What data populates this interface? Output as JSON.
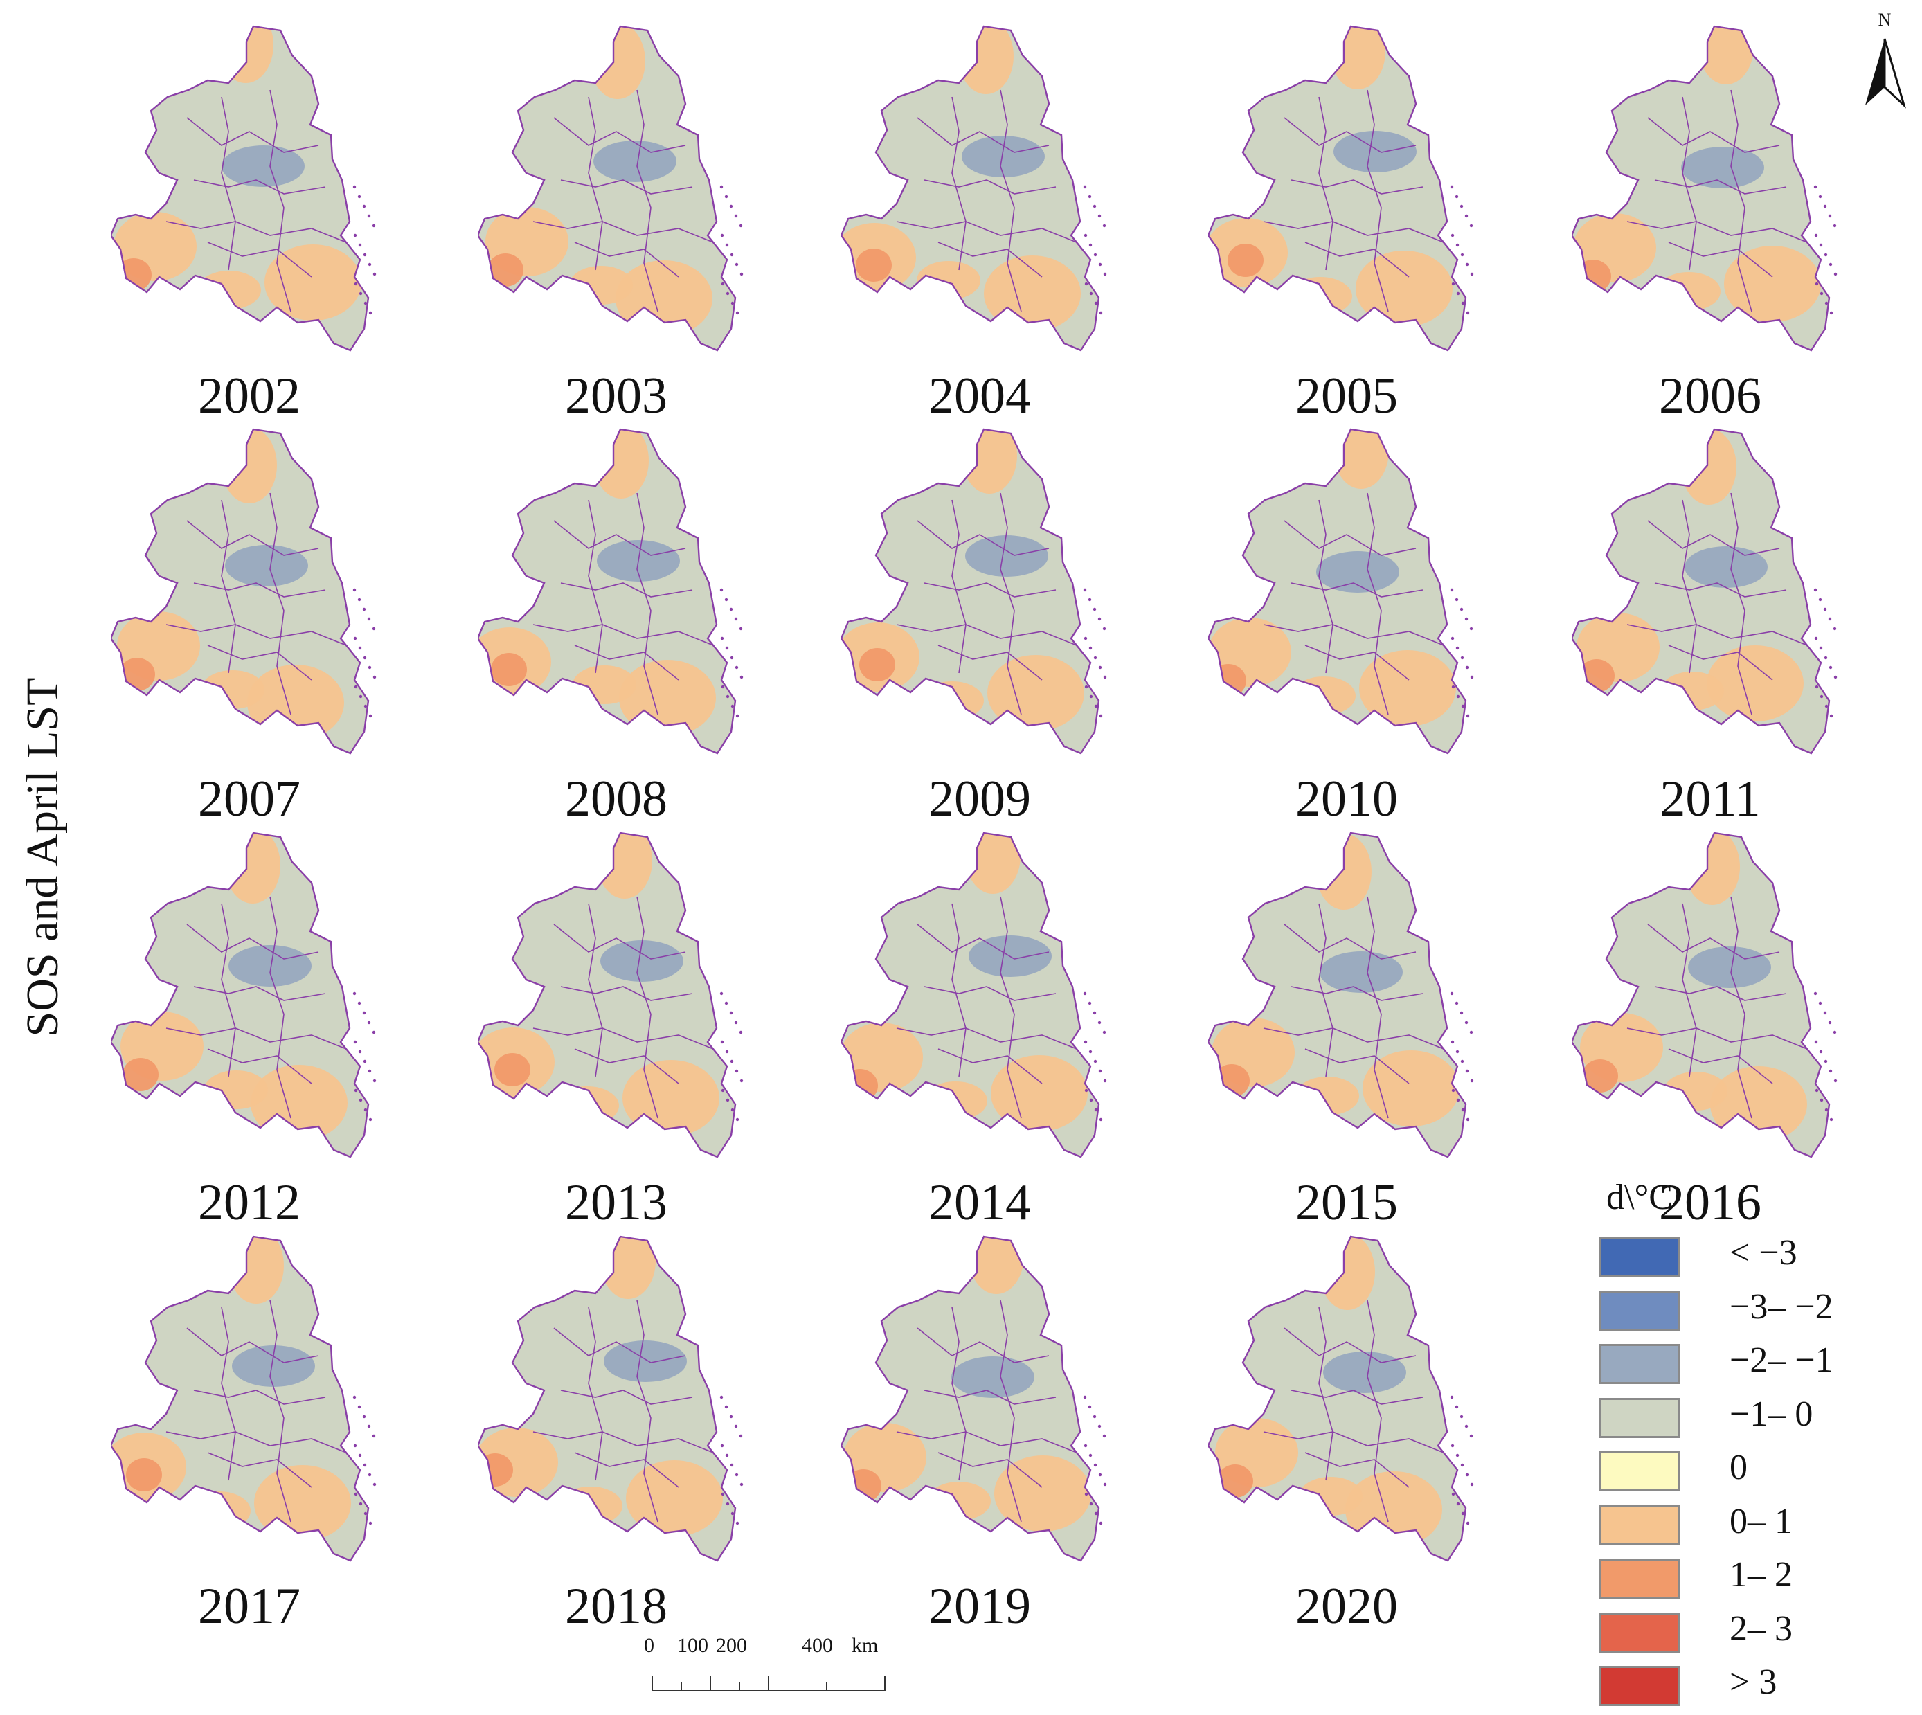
{
  "figure": {
    "side_label": "SOS and April LST"
  },
  "panels": [
    {
      "year": "2002"
    },
    {
      "year": "2003"
    },
    {
      "year": "2004"
    },
    {
      "year": "2005"
    },
    {
      "year": "2006"
    },
    {
      "year": "2007"
    },
    {
      "year": "2008"
    },
    {
      "year": "2009"
    },
    {
      "year": "2010"
    },
    {
      "year": "2011"
    },
    {
      "year": "2012"
    },
    {
      "year": "2013"
    },
    {
      "year": "2014"
    },
    {
      "year": "2015"
    },
    {
      "year": "2016"
    },
    {
      "year": "2017"
    },
    {
      "year": "2018"
    },
    {
      "year": "2019"
    },
    {
      "year": "2020"
    }
  ],
  "north_arrow": {
    "label": "N"
  },
  "legend": {
    "title": "d\\°C",
    "items": [
      {
        "label": "< −3",
        "color": "#4169b4"
      },
      {
        "label": "−3– −2",
        "color": "#6f8cbf"
      },
      {
        "label": "−2– −1",
        "color": "#98a9bf"
      },
      {
        "label": "−1– 0",
        "color": "#cfd5c3"
      },
      {
        "label": "0",
        "color": "#fdfac0"
      },
      {
        "label": "0– 1",
        "color": "#f6c48f"
      },
      {
        "label": "1– 2",
        "color": "#f19a6a"
      },
      {
        "label": "2– 3",
        "color": "#e4644b"
      },
      {
        "label": "> 3",
        "color": "#d23a33"
      }
    ]
  },
  "scale_bar": {
    "ticks": [
      "0",
      "100",
      "200",
      "400"
    ],
    "unit": "km"
  },
  "colors": {
    "boundary": "#8a3fa8",
    "base": "#cfd5c3",
    "warm": "#f6c48f",
    "warm2": "#f19a6a",
    "cool": "#98a9bf"
  }
}
